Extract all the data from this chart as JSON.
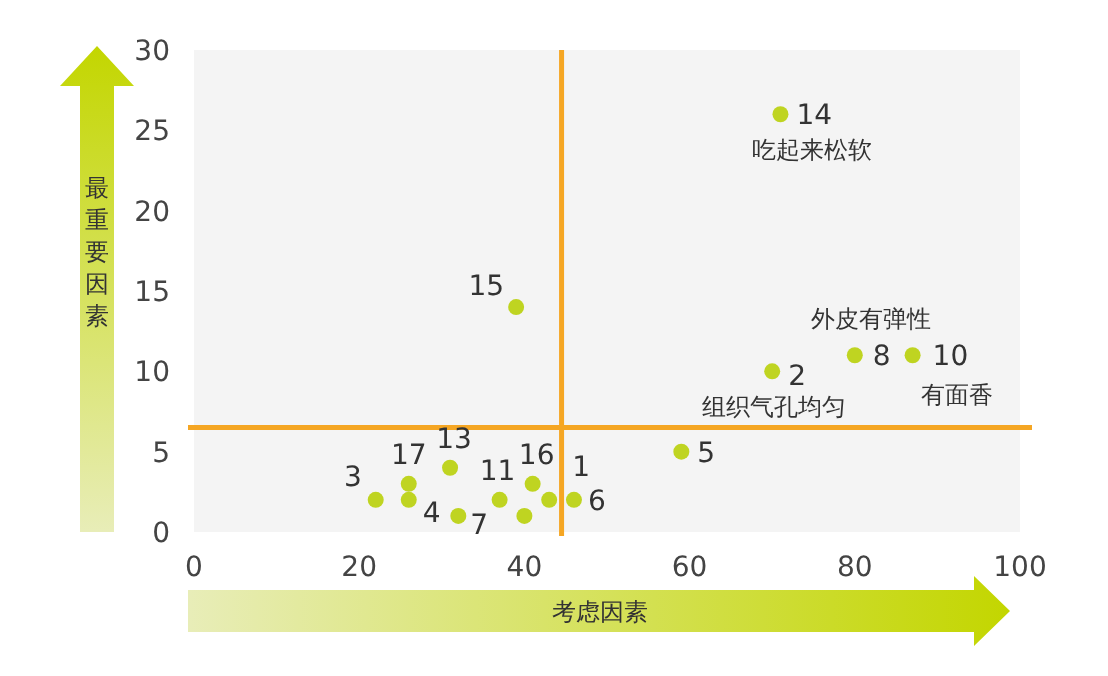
{
  "chart_data": {
    "type": "scatter",
    "xlabel": "考虑因素",
    "ylabel": "最重要因素",
    "color": "#bfd421",
    "marker": "circle",
    "x": [
      22,
      26,
      26,
      31,
      32,
      37,
      40,
      41,
      43,
      46,
      39,
      59,
      70,
      80,
      87,
      71
    ],
    "values": [
      2,
      3,
      2,
      4,
      1,
      2,
      1,
      3,
      2,
      2,
      14,
      5,
      10,
      11,
      11,
      26
    ],
    "xlim": [
      0,
      100
    ],
    "ylim": [
      0,
      30
    ],
    "xticks": [
      0,
      20,
      40,
      60,
      80,
      100
    ],
    "yticks": [
      0,
      5,
      10,
      15,
      20,
      25,
      30
    ],
    "ref_lines": [
      {
        "axis": "x",
        "value": 44.5,
        "color": "#f5a623"
      },
      {
        "axis": "y",
        "value": 6.5,
        "color": "#f5a623"
      }
    ],
    "annotations": [
      {
        "text": "3",
        "x": 22,
        "y": 2
      },
      {
        "text": "17",
        "x": 26,
        "y": 3
      },
      {
        "text": "4",
        "x": 26,
        "y": 2
      },
      {
        "text": "13",
        "x": 31,
        "y": 4
      },
      {
        "text": "7",
        "x": 32,
        "y": 1
      },
      {
        "text": "11",
        "x": 37,
        "y": 2
      },
      {
        "text": "16",
        "x": 41,
        "y": 3
      },
      {
        "text": "1",
        "x": 43,
        "y": 2
      },
      {
        "text": "6",
        "x": 46,
        "y": 2
      },
      {
        "text": "15",
        "x": 39,
        "y": 14
      },
      {
        "text": "5",
        "x": 59,
        "y": 5
      },
      {
        "text": "2",
        "x": 70,
        "y": 10
      },
      {
        "text": "组织气孔均匀",
        "x": 70,
        "y": 10
      },
      {
        "text": "8",
        "x": 80,
        "y": 11
      },
      {
        "text": "外皮有弹性",
        "x": 80,
        "y": 11
      },
      {
        "text": "10",
        "x": 87,
        "y": 11
      },
      {
        "text": "有面香",
        "x": 87,
        "y": 11
      },
      {
        "text": "14",
        "x": 71,
        "y": 26
      },
      {
        "text": "吃起来松软",
        "x": 71,
        "y": 26
      }
    ]
  }
}
